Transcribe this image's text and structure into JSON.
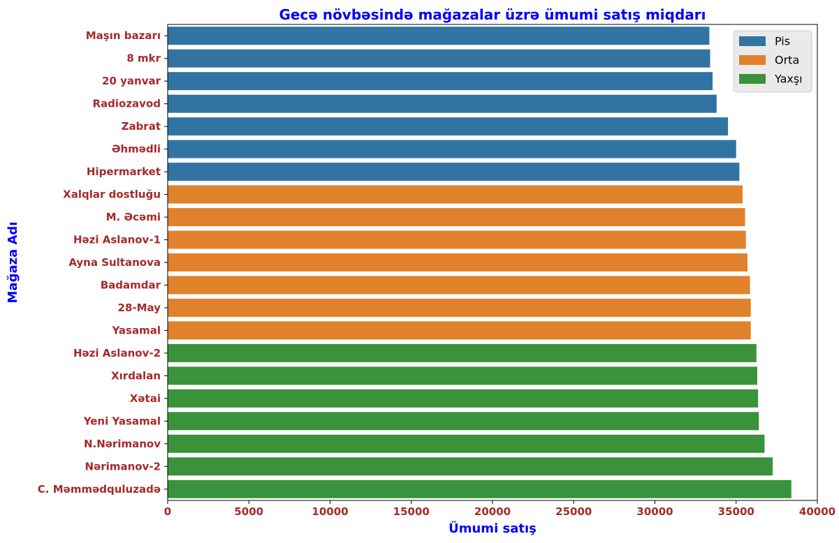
{
  "chart_data": {
    "type": "bar",
    "orientation": "horizontal",
    "title": "Gecə növbəsində mağazalar üzrə ümumi satış miqdarı",
    "xlabel": "Ümumi satış",
    "ylabel": "Mağaza Adı",
    "xlim": [
      0,
      40000
    ],
    "xticks": [
      "0",
      "5000",
      "10000",
      "15000",
      "20000",
      "25000",
      "30000",
      "35000",
      "40000"
    ],
    "grid": false,
    "legend_position": "top-right",
    "legend": [
      {
        "name": "Pis",
        "color": "#3274a1"
      },
      {
        "name": "Orta",
        "color": "#e1812c"
      },
      {
        "name": "Yaxşı",
        "color": "#3a923a"
      }
    ],
    "categories": [
      "Maşın bazarı",
      "8 mkr",
      "20 yanvar",
      "Radiozavod",
      "Zabrat",
      "Əhmədli",
      "Hipermarket",
      "Xalqlar dostluğu",
      "M. Əcəmi",
      "Həzi Aslanov-1",
      "Ayna Sultanova",
      "Badamdar",
      "28-May",
      "Yasamal",
      "Həzi Aslanov-2",
      "Xırdalan",
      "Xətai",
      "Yeni Yasamal",
      "N.Nərimanov",
      "Nərimanov-2",
      "C. Məmmədquluzadə"
    ],
    "values": [
      33350,
      33400,
      33550,
      33800,
      34500,
      35000,
      35200,
      35400,
      35550,
      35600,
      35700,
      35850,
      35900,
      35900,
      36250,
      36300,
      36350,
      36400,
      36750,
      37250,
      38400
    ],
    "groups": [
      "Pis",
      "Pis",
      "Pis",
      "Pis",
      "Pis",
      "Pis",
      "Pis",
      "Orta",
      "Orta",
      "Orta",
      "Orta",
      "Orta",
      "Orta",
      "Orta",
      "Yaxşı",
      "Yaxşı",
      "Yaxşı",
      "Yaxşı",
      "Yaxşı",
      "Yaxşı",
      "Yaxşı"
    ]
  }
}
